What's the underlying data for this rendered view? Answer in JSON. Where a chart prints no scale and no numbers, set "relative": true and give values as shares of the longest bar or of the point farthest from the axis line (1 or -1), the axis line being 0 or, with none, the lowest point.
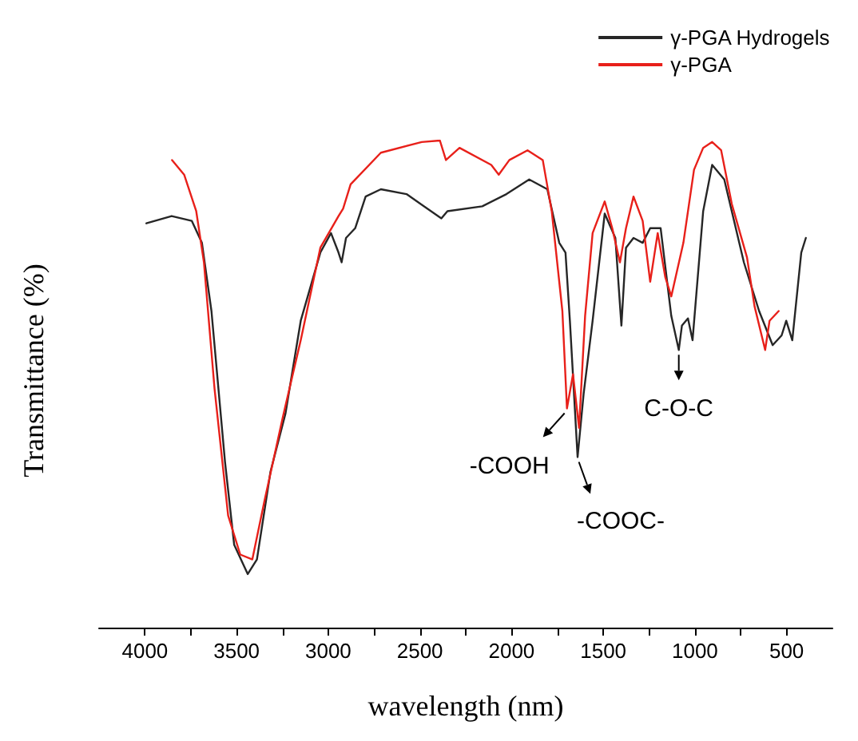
{
  "chart_data": {
    "type": "line",
    "xlabel": "wavelength (nm)",
    "ylabel": "Transmittance (%)",
    "relative": true,
    "xlim": [
      4250,
      250
    ],
    "xticks": [
      4000,
      {
        "value": 3750,
        "label": null
      },
      3500,
      {
        "value": 3250,
        "label": null
      },
      3000,
      {
        "value": 2750,
        "label": null
      },
      2500,
      {
        "value": 2250,
        "label": null
      },
      2000,
      {
        "value": 1750,
        "label": null
      },
      1500,
      {
        "value": 1250,
        "label": null
      },
      1000,
      {
        "value": 750,
        "label": null
      },
      500
    ],
    "legend": "top right",
    "grid": false,
    "marker": "none",
    "line_style": "solid",
    "series": [
      {
        "name": "γ-PGA Hydrogels",
        "color": "#262626",
        "x": [
          3992,
          3854,
          3744,
          3689,
          3637,
          3563,
          3513,
          3439,
          3389,
          3315,
          3233,
          3150,
          3043,
          2985,
          2944,
          2927,
          2903,
          2853,
          2796,
          2713,
          2573,
          2383,
          2350,
          2160,
          2028,
          1904,
          1805,
          1740,
          1706,
          1682,
          1640,
          1607,
          1558,
          1492,
          1434,
          1401,
          1376,
          1335,
          1285,
          1244,
          1187,
          1129,
          1088,
          1071,
          1038,
          1013,
          955,
          906,
          840,
          733,
          650,
          576,
          527,
          502,
          469,
          420,
          395
        ],
        "values": [
          0.83,
          0.845,
          0.835,
          0.79,
          0.65,
          0.34,
          0.17,
          0.11,
          0.14,
          0.32,
          0.44,
          0.63,
          0.77,
          0.81,
          0.77,
          0.75,
          0.8,
          0.82,
          0.885,
          0.9,
          0.89,
          0.84,
          0.855,
          0.865,
          0.89,
          0.92,
          0.9,
          0.79,
          0.77,
          0.63,
          0.35,
          0.48,
          0.63,
          0.85,
          0.8,
          0.62,
          0.78,
          0.8,
          0.79,
          0.82,
          0.82,
          0.64,
          0.57,
          0.62,
          0.635,
          0.59,
          0.855,
          0.95,
          0.92,
          0.75,
          0.65,
          0.58,
          0.6,
          0.63,
          0.59,
          0.77,
          0.8
        ]
      },
      {
        "name": "γ-PGA",
        "color": "#e8201a",
        "x": [
          3852,
          3786,
          3720,
          3678,
          3620,
          3546,
          3480,
          3414,
          3348,
          3249,
          3150,
          3043,
          2944,
          2919,
          2878,
          2713,
          2490,
          2391,
          2358,
          2284,
          2111,
          2070,
          2012,
          1913,
          1830,
          1781,
          1723,
          1698,
          1665,
          1632,
          1599,
          1558,
          1492,
          1451,
          1409,
          1376,
          1335,
          1285,
          1244,
          1203,
          1162,
          1129,
          1063,
          1005,
          955,
          906,
          857,
          799,
          716,
          675,
          617,
          593,
          543
        ],
        "values": [
          0.96,
          0.93,
          0.855,
          0.75,
          0.49,
          0.23,
          0.15,
          0.14,
          0.26,
          0.43,
          0.59,
          0.78,
          0.845,
          0.86,
          0.91,
          0.975,
          0.997,
          1,
          0.96,
          0.985,
          0.95,
          0.93,
          0.96,
          0.98,
          0.96,
          0.855,
          0.65,
          0.45,
          0.52,
          0.41,
          0.64,
          0.81,
          0.875,
          0.82,
          0.75,
          0.82,
          0.885,
          0.835,
          0.71,
          0.81,
          0.72,
          0.68,
          0.79,
          0.94,
          0.985,
          0.997,
          0.98,
          0.87,
          0.76,
          0.66,
          0.57,
          0.63,
          0.65
        ]
      }
    ],
    "annotations": [
      {
        "text": "-COOH",
        "x": 1698,
        "y": 0.45
      },
      {
        "text": "-COOC-",
        "x": 1640,
        "y": 0.35
      },
      {
        "text": "C-O-C",
        "x": 1088,
        "y": 0.57
      }
    ]
  }
}
